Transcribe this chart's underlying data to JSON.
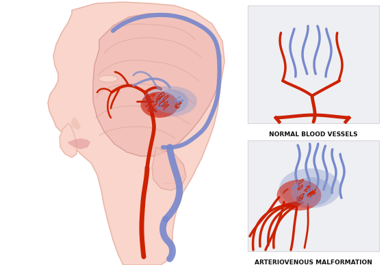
{
  "bg_color": "#ffffff",
  "skin_color": "#f9d5cc",
  "skin_outline": "#e8b8aa",
  "brain_color": "#f2c0b8",
  "brain_outline": "#d49890",
  "artery_color": "#cc2200",
  "vein_color": "#7788cc",
  "panel_bg": "#eeeff3",
  "panel_stroke": "#d8d8dc",
  "label1": "NORMAL BLOOD VESSELS",
  "label2": "ARTERIOVENOUS MALFORMATION",
  "label_fontsize": 6.5,
  "label_fontweight": "bold",
  "fig_width": 5.64,
  "fig_height": 3.87,
  "avm_red": "#cc1100",
  "avm_blue": "#8899cc",
  "avm_purple": "#9966aa"
}
